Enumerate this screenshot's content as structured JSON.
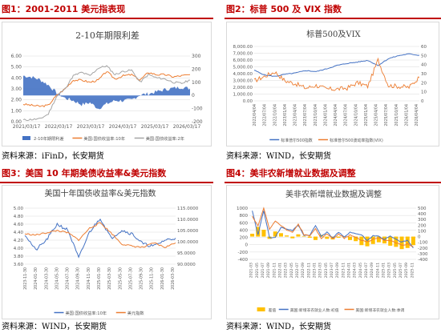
{
  "figures": [
    {
      "caption": "图1：2001-2011 美元指表现",
      "source": "资料来源：iFinD，长安期货"
    },
    {
      "caption": "图2：标普 500 及 VIX 指数",
      "source": "资料来源：WIND，长安期货"
    },
    {
      "caption": "图3：美国 10 年期美债收益率&美元指数",
      "source": "资料来源：WIND，长安期货"
    },
    {
      "caption": "图4：美非农新增就业数据及调整",
      "source": "资料来源：WIND，长安期货"
    }
  ],
  "colors": {
    "accent": "#c00000",
    "blue": "#4472c4",
    "orange": "#ed7d31",
    "gray": "#a5a5a5",
    "yellow": "#ffc000"
  },
  "chart_data": [
    {
      "type": "area",
      "title": "2-10年期限利差",
      "x_ticks": [
        "2021/03/17",
        "2022/03/17",
        "2023/03/17",
        "2024/03/17",
        "2025/03/17",
        "2026/03/17"
      ],
      "y_left_ticks": [
        "6.00",
        "5.00",
        "4.00",
        "3.00",
        "2.00",
        "1.00",
        "0.00"
      ],
      "y_right_ticks": [
        "300",
        "200",
        "100",
        "0",
        "-100",
        "-200"
      ],
      "ylim_left": [
        0,
        6
      ],
      "ylim_right": [
        -200,
        300
      ],
      "x": [
        "2021-03",
        "2021-06",
        "2021-09",
        "2021-12",
        "2022-03",
        "2022-06",
        "2022-09",
        "2022-12",
        "2023-03",
        "2023-06",
        "2023-09",
        "2023-12",
        "2024-03",
        "2024-06",
        "2024-09",
        "2024-12",
        "2025-03",
        "2025-06",
        "2025-09",
        "2025-12",
        "2026-03"
      ],
      "series": [
        {
          "name": "2-10年期限利差",
          "axis": "right",
          "kind": "area",
          "values": [
            150,
            140,
            120,
            80,
            20,
            -20,
            -40,
            -70,
            -55,
            -100,
            -65,
            -40,
            -40,
            -35,
            5,
            12,
            28,
            45,
            55,
            62,
            52
          ]
        },
        {
          "name": "美国:国债收益率:10年",
          "axis": "left",
          "kind": "line",
          "values": [
            1.6,
            1.5,
            1.4,
            1.5,
            2.4,
            3.0,
            3.8,
            3.8,
            3.6,
            3.8,
            4.6,
            3.9,
            4.2,
            4.3,
            3.8,
            4.5,
            4.3,
            4.3,
            4.1,
            4.2,
            4.3
          ]
        },
        {
          "name": "美国:国债收益率:2年",
          "axis": "left",
          "kind": "line",
          "values": [
            0.15,
            0.2,
            0.25,
            0.7,
            2.3,
            3.0,
            4.2,
            4.5,
            4.2,
            4.9,
            5.1,
            4.3,
            4.6,
            4.7,
            3.6,
            4.3,
            4.0,
            3.9,
            3.6,
            3.5,
            3.8
          ]
        }
      ]
    },
    {
      "type": "line",
      "title": "标普500及VIX",
      "x_ticks": [
        "2022/04/04",
        "2022/07/04",
        "2022/10/04",
        "2023/01/04",
        "2023/04/04",
        "2023/07/04",
        "2023/10/04",
        "2024/01/04",
        "2024/04/04",
        "2024/07/04",
        "2024/10/04",
        "2025/01/04",
        "2025/04/04",
        "2025/07/04",
        "2025/10/04",
        "2026/01/04",
        "2026/04/04"
      ],
      "y_left_ticks": [
        "8,000.00",
        "7,000.00",
        "6,000.00",
        "5,000.00",
        "4,000.00",
        "3,000.00",
        "2,000.00",
        "1,000.00",
        "0.00"
      ],
      "y_right_ticks": [
        "60",
        "50",
        "40",
        "30",
        "20",
        "10",
        "0"
      ],
      "ylim_left": [
        0,
        8000
      ],
      "ylim_right": [
        0,
        60
      ],
      "series": [
        {
          "name": "标准普尔500指数",
          "axis": "left",
          "values": [
            4500,
            3800,
            3600,
            3900,
            4100,
            4450,
            4300,
            4700,
            5200,
            5500,
            5700,
            5950,
            5200,
            6200,
            6650,
            6900,
            6700
          ]
        },
        {
          "name": "标准普尔500波动率指数(VIX)",
          "axis": "right",
          "values": [
            22,
            27,
            32,
            22,
            19,
            14,
            17,
            13,
            13,
            14,
            20,
            16,
            45,
            17,
            16,
            15,
            26
          ]
        }
      ]
    },
    {
      "type": "line",
      "title": "美国十年国债收益率&美元指数",
      "x_ticks": [
        "2023-11-30",
        "2024-01-30",
        "2024-03-30",
        "2024-05-30",
        "2024-07-30",
        "2024-09-30",
        "2024-11-30",
        "2025-01-30",
        "2025-03-30",
        "2025-05-30",
        "2025-07-30",
        "2025-09-30",
        "2025-11-30",
        "2026-01-30",
        "2026-03-30"
      ],
      "y_left_ticks": [
        "5.00",
        "4.80",
        "4.60",
        "4.40",
        "4.20",
        "4.00",
        "3.80",
        "3.60"
      ],
      "y_right_ticks": [
        "115.0000",
        "110.0000",
        "105.0000",
        "100.0000",
        "95.0000",
        "90.0000"
      ],
      "ylim_left": [
        3.6,
        5.0
      ],
      "ylim_right": [
        90,
        115
      ],
      "series": [
        {
          "name": "美国:国债收益率:10年",
          "axis": "left",
          "values": [
            4.35,
            3.95,
            4.2,
            4.6,
            4.45,
            3.75,
            4.4,
            4.75,
            4.25,
            4.45,
            4.35,
            4.1,
            4.05,
            4.2,
            4.25
          ]
        },
        {
          "name": "美元指数",
          "axis": "right",
          "values": [
            103.5,
            103.0,
            104.0,
            105.0,
            104.0,
            100.8,
            106.0,
            108.5,
            104.0,
            99.0,
            98.0,
            97.5,
            99.5,
            97.5,
            99.5
          ]
        }
      ]
    },
    {
      "type": "bar",
      "title": "美非农新增就业数据及调整",
      "x_ticks": [
        "2021-03",
        "2021-05",
        "2021-07",
        "2021-09",
        "2021-11",
        "2022-01",
        "2022-03",
        "2022-05",
        "2022-07",
        "2022-09",
        "2022-11",
        "2023-01",
        "2023-03",
        "2023-05",
        "2023-07",
        "2023-09",
        "2023-11",
        "2024-01",
        "2024-03",
        "2024-05",
        "2024-07",
        "2024-09",
        "2024-11",
        "2025-01",
        "2025-03",
        "2025-05",
        "2025-07",
        "2025-09",
        "2025-11"
      ],
      "y_left_ticks": [
        "1000",
        "800",
        "600",
        "400",
        "200",
        "0",
        "-200",
        "-400"
      ],
      "y_right_ticks": [
        "500",
        "400",
        "300",
        "200",
        "100",
        "0",
        "-100",
        "-200",
        "-300",
        "-400"
      ],
      "ylim_left": [
        -400,
        1000
      ],
      "ylim_right": [
        -400,
        500
      ],
      "series": [
        {
          "name": "差值",
          "axis": "right",
          "kind": "bar",
          "values": [
            50,
            170,
            120,
            -40,
            90,
            60,
            20,
            -30,
            40,
            10,
            -20,
            -60,
            30,
            -40,
            -50,
            -20,
            -10,
            -60,
            -80,
            -150,
            -170,
            -130,
            -100,
            -120,
            -160,
            -180,
            -220,
            -200,
            -150
          ]
        },
        {
          "name": "美国:新增非农就业人数:初值",
          "axis": "left",
          "kind": "line",
          "values": [
            920,
            270,
            940,
            190,
            210,
            470,
            430,
            390,
            530,
            260,
            260,
            520,
            240,
            340,
            190,
            340,
            200,
            350,
            300,
            270,
            110,
            250,
            230,
            145,
            230,
            140,
            70,
            120,
            -90
          ]
        },
        {
          "name": "美国:新增非农就业人数:季调",
          "axis": "left",
          "kind": "line",
          "values": [
            780,
            500,
            1000,
            420,
            650,
            520,
            400,
            350,
            560,
            280,
            230,
            450,
            150,
            300,
            160,
            300,
            180,
            260,
            200,
            120,
            80,
            150,
            200,
            110,
            120,
            50,
            -10,
            20,
            -50
          ]
        }
      ]
    }
  ]
}
